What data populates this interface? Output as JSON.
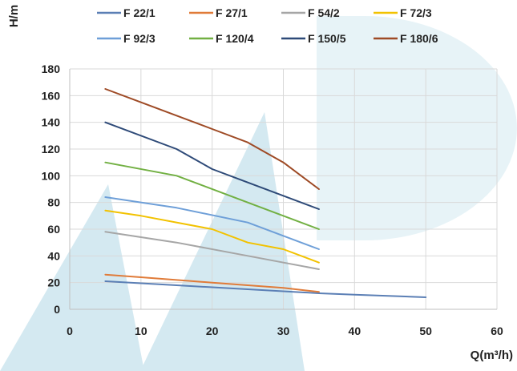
{
  "chart_data": {
    "type": "line",
    "xlabel": "Q(m³/h)",
    "ylabel": "H/m",
    "xlim": [
      0,
      60
    ],
    "ylim": [
      0,
      180
    ],
    "xticks": [
      0,
      10,
      20,
      30,
      40,
      50,
      60
    ],
    "yticks": [
      0,
      20,
      40,
      60,
      80,
      100,
      120,
      140,
      160,
      180
    ],
    "grid": true,
    "legend_position": "top",
    "series": [
      {
        "name": "F 22/1",
        "color": "#5b7fb5",
        "x": [
          5,
          15,
          25,
          35,
          40,
          50
        ],
        "y": [
          21,
          18,
          15,
          12,
          11,
          9
        ]
      },
      {
        "name": "F 27/1",
        "color": "#e07b39",
        "x": [
          5,
          10,
          20,
          30,
          35
        ],
        "y": [
          26,
          24,
          20,
          16,
          13
        ]
      },
      {
        "name": "F 54/2",
        "color": "#a6a6a6",
        "x": [
          5,
          15,
          25,
          35
        ],
        "y": [
          58,
          50,
          40,
          30
        ]
      },
      {
        "name": "F 72/3",
        "color": "#f2c200",
        "x": [
          5,
          10,
          20,
          25,
          30,
          35
        ],
        "y": [
          74,
          70,
          60,
          50,
          45,
          35
        ]
      },
      {
        "name": "F 92/3",
        "color": "#6e9fd8",
        "x": [
          5,
          15,
          25,
          35
        ],
        "y": [
          84,
          76,
          65,
          45
        ]
      },
      {
        "name": "F 120/4",
        "color": "#72b043",
        "x": [
          5,
          15,
          25,
          35
        ],
        "y": [
          110,
          100,
          80,
          60
        ]
      },
      {
        "name": "F 150/5",
        "color": "#2e4a78",
        "x": [
          5,
          15,
          20,
          25,
          35
        ],
        "y": [
          140,
          120,
          105,
          95,
          75
        ]
      },
      {
        "name": "F 180/6",
        "color": "#9e4a25",
        "x": [
          5,
          15,
          20,
          25,
          30,
          35
        ],
        "y": [
          165,
          145,
          135,
          125,
          110,
          90
        ]
      }
    ]
  }
}
